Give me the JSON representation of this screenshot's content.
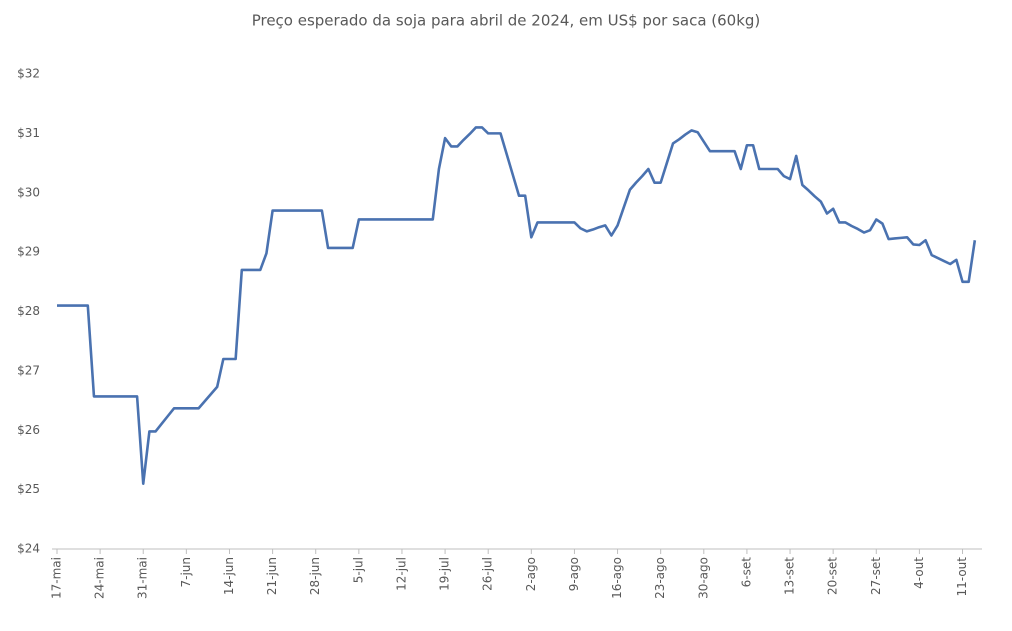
{
  "chart_data": {
    "type": "line",
    "title": "Preço esperado da soja para abril de 2024, em US$ por saca (60kg)",
    "categories": [
      "17-mai",
      null,
      null,
      null,
      null,
      null,
      null,
      "24-mai",
      null,
      null,
      null,
      null,
      null,
      null,
      "31-mai",
      null,
      null,
      null,
      null,
      null,
      null,
      "7-jun",
      null,
      null,
      null,
      null,
      null,
      null,
      "14-jun",
      null,
      null,
      null,
      null,
      null,
      null,
      "21-jun",
      null,
      null,
      null,
      null,
      null,
      null,
      "28-jun",
      null,
      null,
      null,
      null,
      null,
      null,
      "5-jul",
      null,
      null,
      null,
      null,
      null,
      null,
      "12-jul",
      null,
      null,
      null,
      null,
      null,
      null,
      "19-jul",
      null,
      null,
      null,
      null,
      null,
      null,
      "26-jul",
      null,
      null,
      null,
      null,
      null,
      null,
      "2-ago",
      null,
      null,
      null,
      null,
      null,
      null,
      "9-ago",
      null,
      null,
      null,
      null,
      null,
      null,
      "16-ago",
      null,
      null,
      null,
      null,
      null,
      null,
      "23-ago",
      null,
      null,
      null,
      null,
      null,
      null,
      "30-ago",
      null,
      null,
      null,
      null,
      null,
      null,
      "6-set",
      null,
      null,
      null,
      null,
      null,
      null,
      "13-set",
      null,
      null,
      null,
      null,
      null,
      null,
      "20-set",
      null,
      null,
      null,
      null,
      null,
      null,
      "27-set",
      null,
      null,
      null,
      null,
      null,
      null,
      "4-out",
      null,
      null,
      null,
      null,
      null,
      null,
      "11-out",
      null,
      null
    ],
    "values": [
      28.1,
      28.1,
      28.1,
      28.1,
      28.1,
      28.1,
      26.57,
      26.57,
      26.57,
      26.57,
      26.57,
      26.57,
      26.57,
      26.57,
      25.1,
      25.98,
      25.98,
      26.11,
      26.24,
      26.37,
      26.37,
      26.37,
      26.37,
      26.37,
      26.49,
      26.61,
      26.73,
      27.2,
      27.2,
      27.2,
      28.7,
      28.7,
      28.7,
      28.7,
      28.98,
      29.7,
      29.7,
      29.7,
      29.7,
      29.7,
      29.7,
      29.7,
      29.7,
      29.7,
      29.07,
      29.07,
      29.07,
      29.07,
      29.07,
      29.55,
      29.55,
      29.55,
      29.55,
      29.55,
      29.55,
      29.55,
      29.55,
      29.55,
      29.55,
      29.55,
      29.55,
      29.55,
      30.4,
      30.92,
      30.78,
      30.78,
      30.89,
      30.99,
      31.1,
      31.1,
      31.0,
      31.0,
      31.0,
      30.65,
      30.3,
      29.95,
      29.95,
      29.25,
      29.5,
      29.5,
      29.5,
      29.5,
      29.5,
      29.5,
      29.5,
      29.4,
      29.35,
      29.38,
      29.42,
      29.45,
      29.28,
      29.45,
      29.75,
      30.05,
      30.17,
      30.28,
      30.4,
      30.17,
      30.17,
      30.5,
      30.83,
      30.9,
      30.98,
      31.05,
      31.02,
      30.86,
      30.7,
      30.7,
      30.7,
      30.7,
      30.7,
      30.4,
      30.8,
      30.8,
      30.4,
      30.4,
      30.4,
      30.4,
      30.28,
      30.23,
      30.62,
      30.13,
      30.04,
      29.94,
      29.85,
      29.65,
      29.73,
      29.5,
      29.5,
      29.44,
      29.39,
      29.33,
      29.37,
      29.55,
      29.48,
      29.22,
      29.23,
      29.24,
      29.25,
      29.13,
      29.12,
      29.2,
      28.95,
      28.9,
      28.85,
      28.8,
      28.87,
      28.5,
      28.5,
      29.2
    ],
    "color": "#4a72b0",
    "ylim": [
      24,
      32
    ],
    "yticks": [
      {
        "value": 24,
        "label": "$24"
      },
      {
        "value": 25,
        "label": "$25"
      },
      {
        "value": 26,
        "label": "$26"
      },
      {
        "value": 27,
        "label": "$27"
      },
      {
        "value": 28,
        "label": "$28"
      },
      {
        "value": 29,
        "label": "$29"
      },
      {
        "value": 30,
        "label": "$30"
      },
      {
        "value": 31,
        "label": "$31"
      },
      {
        "value": 32,
        "label": "$32"
      }
    ],
    "grid": false
  }
}
